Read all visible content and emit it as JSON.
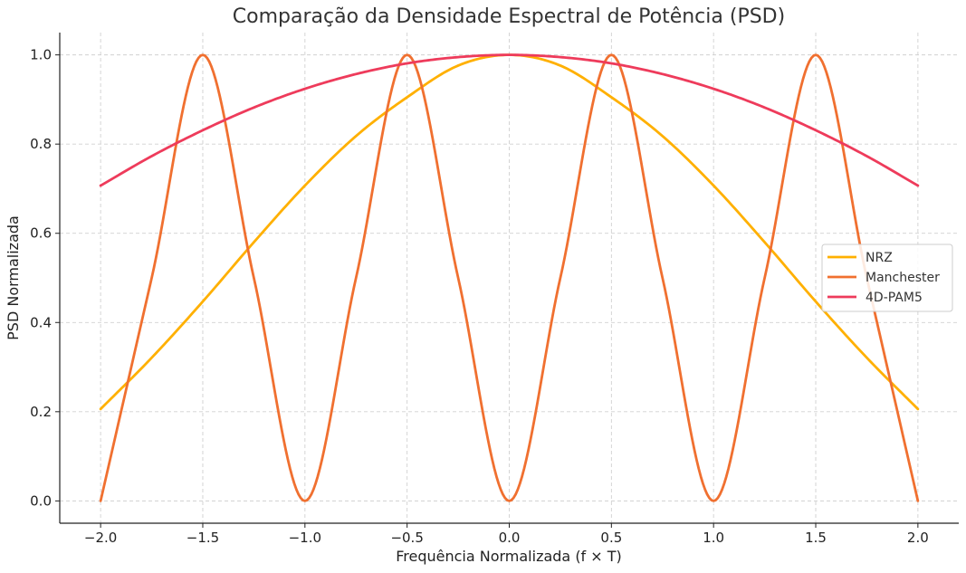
{
  "chart_data": {
    "type": "line",
    "title": "Comparação da Densidade Espectral de Potência (PSD)",
    "xlabel": "Frequência Normalizada (f × T)",
    "ylabel": "PSD Normalizada",
    "xlim": [
      -2.2,
      2.2
    ],
    "ylim": [
      -0.05,
      1.05
    ],
    "xticks": [
      -2.0,
      -1.5,
      -1.0,
      -0.5,
      0.0,
      0.5,
      1.0,
      1.5,
      2.0
    ],
    "xtick_labels": [
      "−2.0",
      "−1.5",
      "−1.0",
      "−0.5",
      "0.0",
      "0.5",
      "1.0",
      "1.5",
      "2.0"
    ],
    "yticks": [
      0.0,
      0.2,
      0.4,
      0.6,
      0.8,
      1.0
    ],
    "ytick_labels": [
      "0.0",
      "0.2",
      "0.4",
      "0.6",
      "0.8",
      "1.0"
    ],
    "grid": true,
    "legend_position": "center-right",
    "x": [
      -2.0,
      -1.75,
      -1.5,
      -1.25,
      -1.0,
      -0.75,
      -0.5,
      -0.25,
      0.0,
      0.25,
      0.5,
      0.75,
      1.0,
      1.25,
      1.5,
      1.75,
      2.0
    ],
    "series": [
      {
        "name": "NRZ",
        "color": "#FFB000",
        "values": [
          0.206,
          0.321,
          0.447,
          0.58,
          0.707,
          0.818,
          0.905,
          0.976,
          1.0,
          0.976,
          0.905,
          0.818,
          0.707,
          0.58,
          0.447,
          0.321,
          0.206
        ]
      },
      {
        "name": "Manchester",
        "color": "#F07030",
        "values": [
          0.0,
          0.5,
          1.0,
          0.5,
          0.0,
          0.5,
          1.0,
          0.5,
          0.0,
          0.5,
          1.0,
          0.5,
          0.0,
          0.5,
          1.0,
          0.5,
          0.0
        ]
      },
      {
        "name": "4D-PAM5",
        "color": "#EE3B5B",
        "values": [
          0.707,
          0.773,
          0.831,
          0.882,
          0.924,
          0.957,
          0.981,
          0.995,
          1.0,
          0.995,
          0.981,
          0.957,
          0.924,
          0.882,
          0.831,
          0.773,
          0.707
        ]
      }
    ]
  }
}
